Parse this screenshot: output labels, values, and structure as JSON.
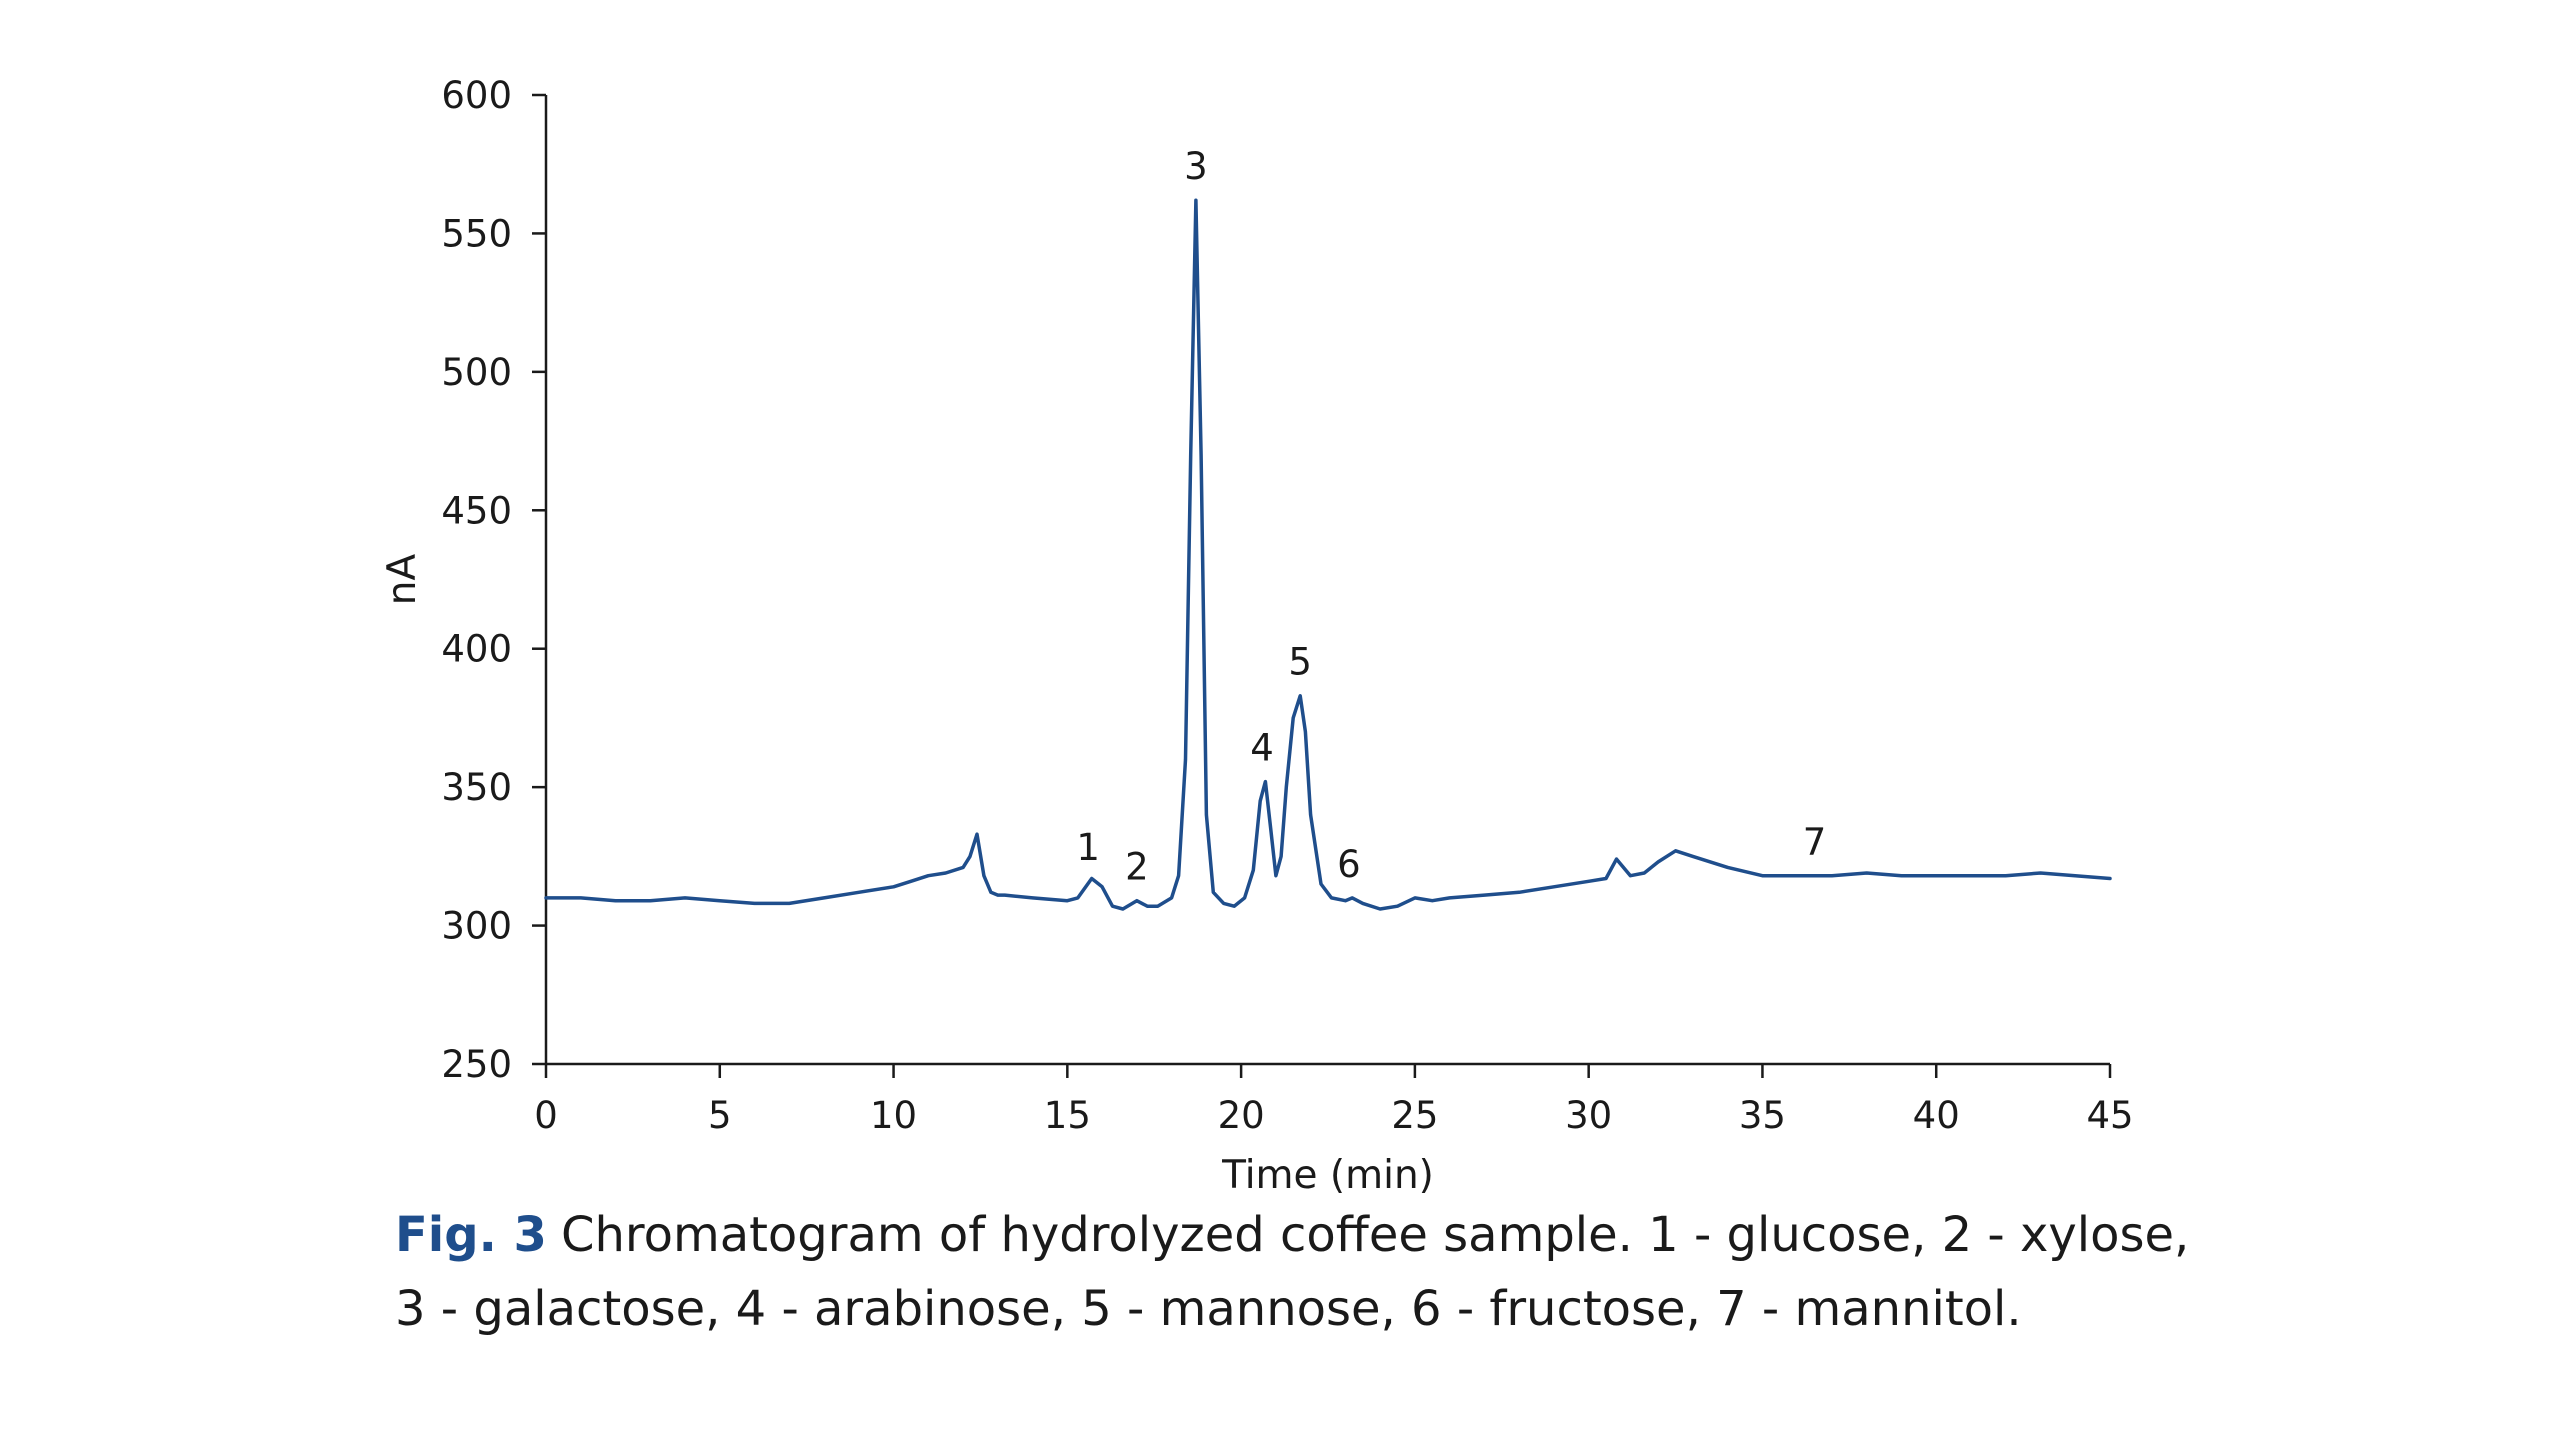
{
  "caption": {
    "label": "Fig. 3",
    "text": "Chromatogram of hydrolyzed coffee sample. 1 - glucose, 2 - xylose, 3 - galactose, 4 - arabinose, 5 - mannose, 6 - fructose, 7 - mannitol."
  },
  "colors": {
    "series": "#1f4e8c",
    "axis": "#1a1a1a",
    "caption_label": "#1f4e8c"
  },
  "chart_data": {
    "type": "line",
    "title": "",
    "xlabel": "Time (min)",
    "ylabel": "nA",
    "xlim": [
      0,
      45
    ],
    "ylim": [
      250,
      600
    ],
    "x_ticks": [
      0,
      5,
      10,
      15,
      20,
      25,
      30,
      35,
      40,
      45
    ],
    "y_ticks": [
      250,
      300,
      350,
      400,
      450,
      500,
      550,
      600
    ],
    "grid": false,
    "legend": "none",
    "series": [
      {
        "x": [
          0,
          1,
          2,
          3,
          4,
          5,
          6,
          7,
          8,
          9,
          10,
          10.5,
          11,
          11.5,
          12,
          12.2,
          12.4,
          12.6,
          12.8,
          13.0,
          13.2,
          14,
          15,
          15.3,
          15.7,
          16.0,
          16.3,
          16.6,
          17.0,
          17.3,
          17.6,
          18.0,
          18.2,
          18.4,
          18.55,
          18.7,
          18.85,
          19.0,
          19.2,
          19.5,
          19.8,
          20.1,
          20.35,
          20.55,
          20.7,
          20.85,
          21.0,
          21.15,
          21.3,
          21.5,
          21.7,
          21.85,
          22.0,
          22.3,
          22.6,
          23.0,
          23.2,
          23.5,
          24,
          24.5,
          25,
          25.5,
          26,
          27,
          28,
          29,
          30,
          30.5,
          30.8,
          31.2,
          31.6,
          32,
          32.5,
          33,
          33.5,
          34,
          35,
          36,
          37,
          38,
          39,
          40,
          41,
          42,
          43,
          44,
          45
        ],
        "y": [
          310,
          310,
          309,
          309,
          310,
          309,
          308,
          308,
          310,
          312,
          314,
          316,
          318,
          319,
          321,
          325,
          333,
          318,
          312,
          311,
          311,
          310,
          309,
          310,
          317,
          314,
          307,
          306,
          309,
          307,
          307,
          310,
          318,
          360,
          470,
          562,
          470,
          340,
          312,
          308,
          307,
          310,
          320,
          345,
          352,
          335,
          318,
          325,
          350,
          375,
          383,
          370,
          340,
          315,
          310,
          309,
          310,
          308,
          306,
          307,
          310,
          309,
          310,
          311,
          312,
          314,
          316,
          317,
          324,
          318,
          319,
          323,
          327,
          325,
          323,
          321,
          318,
          318,
          318,
          319,
          318,
          318,
          318,
          318,
          319,
          318,
          317
        ]
      }
    ],
    "annotations": [
      {
        "text": "1",
        "x": 15.6,
        "y": 320
      },
      {
        "text": "2",
        "x": 17.0,
        "y": 313
      },
      {
        "text": "3",
        "x": 18.7,
        "y": 566
      },
      {
        "text": "4",
        "x": 20.6,
        "y": 356
      },
      {
        "text": "5",
        "x": 21.7,
        "y": 387
      },
      {
        "text": "6",
        "x": 23.1,
        "y": 314
      },
      {
        "text": "7",
        "x": 36.5,
        "y": 322
      }
    ]
  }
}
